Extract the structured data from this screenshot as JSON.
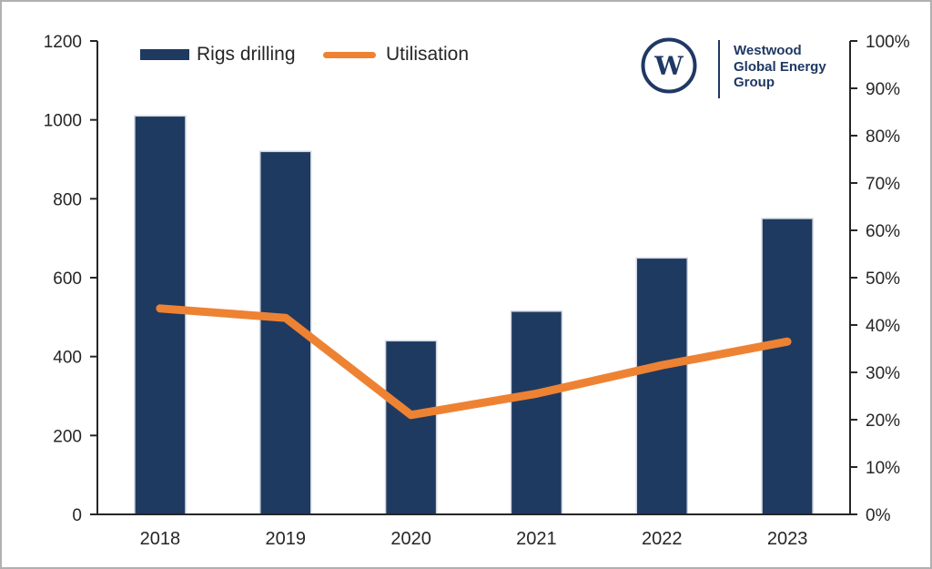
{
  "colors": {
    "bar": "#1F3A60",
    "bar_border": "#D0D7E2",
    "line": "#EE8233",
    "axis": "#262626",
    "text": "#262626",
    "navy": "#1F3864",
    "frame_border": "#B0B0B0"
  },
  "legend": {
    "rigs_label": "Rigs drilling",
    "utilisation_label": "Utilisation"
  },
  "logo": {
    "letter": "W",
    "line1": "Westwood",
    "line2": "Global Energy",
    "line3": "Group"
  },
  "chart_data": {
    "type": "bar+line combo",
    "title": "",
    "categories": [
      "2018",
      "2019",
      "2020",
      "2021",
      "2022",
      "2023"
    ],
    "series": [
      {
        "name": "Rigs drilling",
        "type": "bar",
        "axis": "left",
        "values": [
          1010,
          920,
          440,
          515,
          650,
          750
        ]
      },
      {
        "name": "Utilisation",
        "type": "line",
        "axis": "right",
        "values_pct": [
          43.5,
          41.5,
          21,
          25.5,
          31.5,
          36.5
        ]
      }
    ],
    "left_axis": {
      "min": 0,
      "max": 1200,
      "ticks": [
        0,
        200,
        400,
        600,
        800,
        1000,
        1200
      ],
      "tick_labels": [
        "0",
        "200",
        "400",
        "600",
        "800",
        "1000",
        "1200"
      ]
    },
    "right_axis": {
      "min": 0,
      "max": 100,
      "ticks": [
        0,
        10,
        20,
        30,
        40,
        50,
        60,
        70,
        80,
        90,
        100
      ],
      "tick_labels": [
        "0%",
        "10%",
        "20%",
        "30%",
        "40%",
        "50%",
        "60%",
        "70%",
        "80%",
        "90%",
        "100%"
      ]
    },
    "grid": false,
    "legend_position": "top-left"
  }
}
